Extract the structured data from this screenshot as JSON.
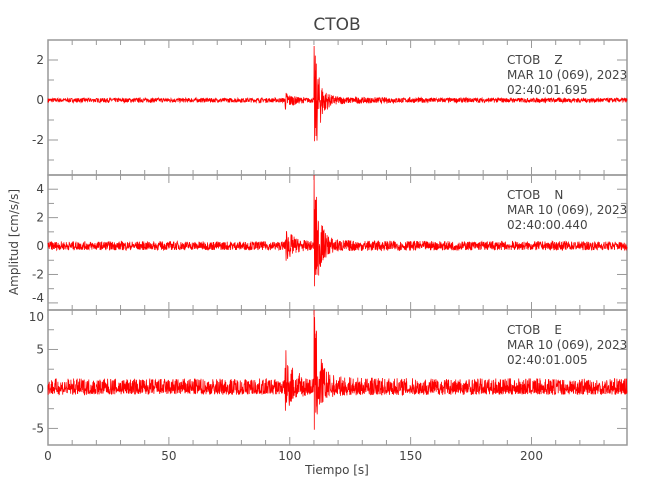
{
  "chart_data": [
    {
      "type": "line",
      "title": "CTOB",
      "xlabel": "Tiempo [s]",
      "ylabel": "Amplitud [cm/s/s]",
      "xlim": [
        0,
        239.5
      ],
      "xticks": [
        0,
        50,
        100,
        150,
        200
      ],
      "color": "#ff0000",
      "panels": [
        {
          "station": "CTOB",
          "component": "Z",
          "date": "MAR 10 (069), 2023",
          "time": "02:40:01.695",
          "ylim": [
            -3.75,
            3
          ],
          "yticks": [
            -2,
            0,
            2
          ],
          "onset_s": 110,
          "peak_max": 2.7,
          "peak_min": -3.5,
          "p_arrival_s": 98
        },
        {
          "station": "CTOB",
          "component": "N",
          "date": "MAR 10 (069), 2023",
          "time": "02:40:00.440",
          "ylim": [
            -4.5,
            5
          ],
          "yticks": [
            -4,
            -2,
            0,
            2,
            4
          ],
          "onset_s": 110,
          "peak_max": 5,
          "peak_min": -4.3,
          "p_arrival_s": 98
        },
        {
          "station": "CTOB",
          "component": "E",
          "date": "MAR 10 (069), 2023",
          "time": "02:40:01.005",
          "ylim": [
            -7.1,
            10
          ],
          "yticks": [
            -5,
            0,
            5,
            10
          ],
          "onset_s": 110,
          "peak_max": 10,
          "peak_min": -5.5,
          "p_arrival_s": 98
        }
      ]
    }
  ]
}
